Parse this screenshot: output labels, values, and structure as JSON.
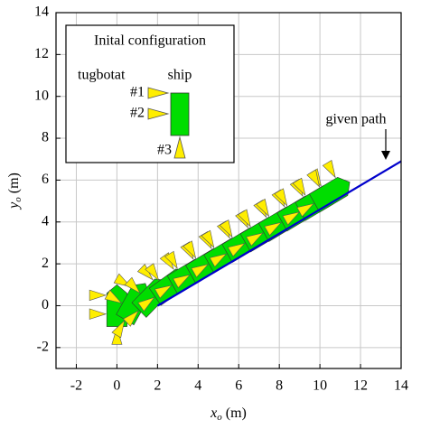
{
  "chart_data": {
    "type": "trajectory",
    "xlabel": {
      "symbol": "x",
      "subscript": "o",
      "unit": "(m)"
    },
    "ylabel": {
      "symbol": "y",
      "subscript": "o",
      "unit": "(m)"
    },
    "xlim": [
      -3,
      14
    ],
    "ylim": [
      -3,
      14
    ],
    "xticks": [
      -2,
      0,
      2,
      4,
      6,
      8,
      10,
      12,
      14
    ],
    "yticks": [
      -2,
      0,
      2,
      4,
      6,
      8,
      10,
      12,
      14
    ],
    "grid": true,
    "path": {
      "name": "given path",
      "color": "#0000cc",
      "x": [
        2,
        14
      ],
      "y": [
        0,
        6.9
      ]
    },
    "ships": {
      "color": "#00dd00",
      "tug_color": "#ffee00",
      "x": [
        0,
        0.9,
        1.8,
        2.7,
        3.6,
        4.5,
        5.4,
        6.3,
        7.2,
        8.1,
        9.0,
        9.9,
        10.6
      ],
      "y": [
        0,
        0.2,
        0.5,
        1.0,
        1.5,
        2.0,
        2.5,
        3.0,
        3.5,
        4.0,
        4.5,
        5.0,
        5.4
      ],
      "heading": [
        90,
        60,
        45,
        35,
        30,
        30,
        30,
        30,
        30,
        30,
        30,
        30,
        30
      ]
    },
    "inset": {
      "title": "Inital configuration",
      "tug_label": "tugbotat",
      "ship_label": "ship",
      "tugs": [
        "#1",
        "#2",
        "#3"
      ]
    }
  }
}
